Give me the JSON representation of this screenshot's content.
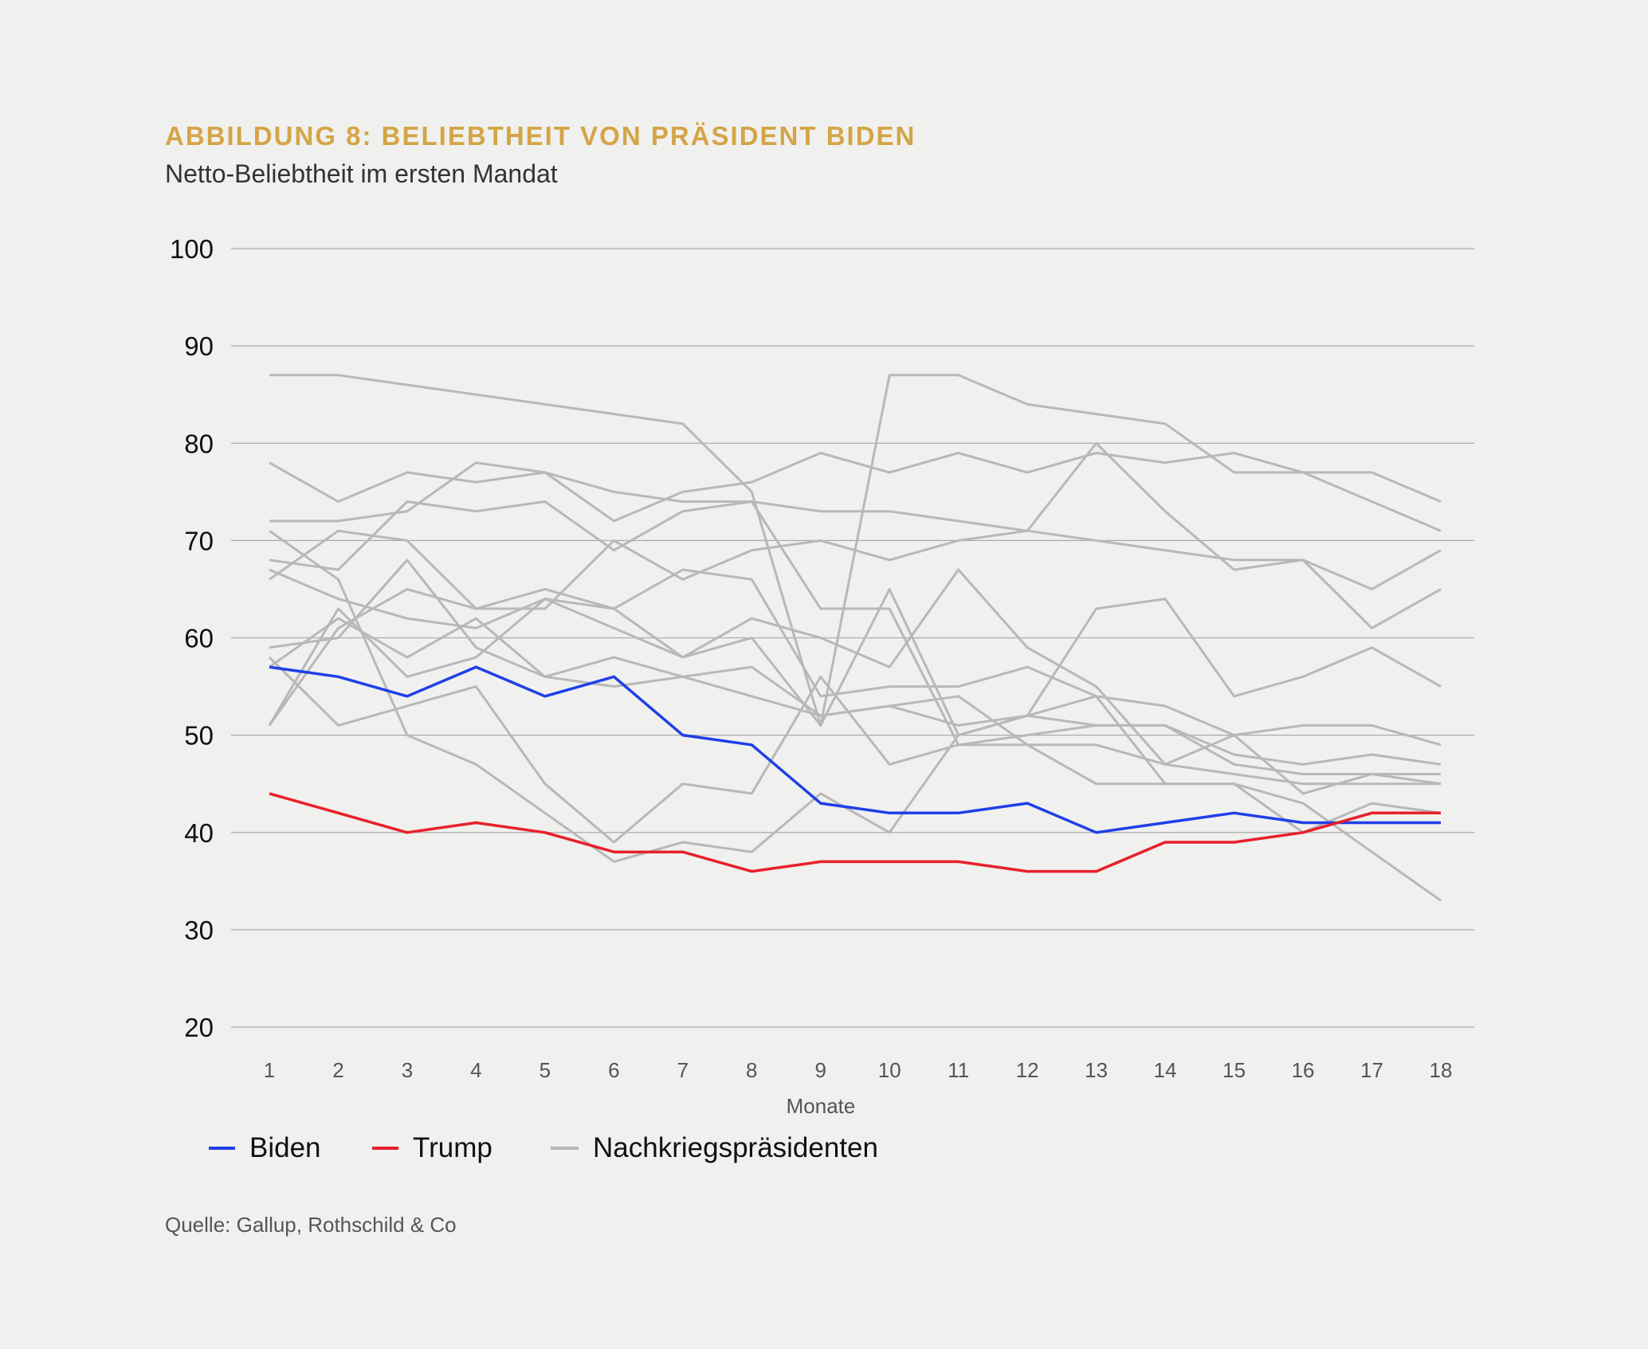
{
  "header": {
    "title": "ABBILDUNG 8: BELIEBTHEIT VON PRÄSIDENT BIDEN",
    "subtitle": "Netto-Beliebtheit im ersten Mandat"
  },
  "footer": {
    "source": "Quelle: Gallup, Rothschild & Co"
  },
  "colors": {
    "biden": "#1f3fe8",
    "trump": "#e8202a",
    "others": "#b8b8b8",
    "grid": "#aaaaaa",
    "accent": "#d4a546"
  },
  "chart_data": {
    "type": "line",
    "title": "ABBILDUNG 8: BELIEBTHEIT VON PRÄSIDENT BIDEN",
    "subtitle": "Netto-Beliebtheit im ersten Mandat",
    "xlabel": "Monate",
    "ylabel": "",
    "x": [
      1,
      2,
      3,
      4,
      5,
      6,
      7,
      8,
      9,
      10,
      11,
      12,
      13,
      14,
      15,
      16,
      17,
      18
    ],
    "ylim": [
      20,
      100
    ],
    "yticks": [
      20,
      30,
      40,
      50,
      60,
      70,
      80,
      90,
      100
    ],
    "grid": true,
    "legend_position": "bottom-left",
    "legend": [
      "Biden",
      "Trump",
      "Nachkriegspräsidenten"
    ],
    "series": [
      {
        "name": "Biden",
        "color": "#1f3fe8",
        "values": [
          57,
          56,
          54,
          57,
          54,
          56,
          50,
          49,
          43,
          42,
          42,
          43,
          40,
          41,
          42,
          41,
          41,
          41
        ]
      },
      {
        "name": "Trump",
        "color": "#e8202a",
        "values": [
          44,
          42,
          40,
          41,
          40,
          38,
          38,
          36,
          37,
          37,
          37,
          36,
          36,
          39,
          39,
          40,
          42,
          42
        ]
      },
      {
        "group": "Nachkriegspräsidenten",
        "values": [
          87,
          87,
          86,
          85,
          84,
          83,
          82,
          75,
          51,
          87,
          87,
          84,
          83,
          82,
          77,
          77,
          77,
          74
        ]
      },
      {
        "group": "Nachkriegspräsidenten",
        "values": [
          78,
          74,
          77,
          76,
          77,
          75,
          74,
          74,
          73,
          73,
          72,
          71,
          70,
          69,
          68,
          68,
          65,
          69
        ]
      },
      {
        "group": "Nachkriegspräsidenten",
        "values": [
          72,
          72,
          73,
          78,
          77,
          72,
          75,
          76,
          79,
          77,
          79,
          77,
          79,
          78,
          79,
          77,
          74,
          71
        ]
      },
      {
        "group": "Nachkriegspräsidenten",
        "values": [
          66,
          71,
          70,
          63,
          63,
          70,
          66,
          69,
          70,
          68,
          70,
          71,
          80,
          73,
          67,
          68,
          61,
          65
        ]
      },
      {
        "group": "Nachkriegspräsidenten",
        "values": [
          71,
          66,
          50,
          47,
          42,
          37,
          39,
          38,
          44,
          40,
          50,
          52,
          63,
          64,
          54,
          56,
          59,
          55
        ]
      },
      {
        "group": "Nachkriegspräsidenten",
        "values": [
          68,
          67,
          74,
          73,
          74,
          69,
          73,
          74,
          63,
          63,
          49,
          50,
          51,
          51,
          48,
          47,
          48,
          47
        ]
      },
      {
        "group": "Nachkriegspräsidenten",
        "values": [
          67,
          64,
          62,
          61,
          64,
          63,
          58,
          62,
          60,
          57,
          67,
          59,
          55,
          47,
          50,
          51,
          51,
          49
        ]
      },
      {
        "group": "Nachkriegspräsidenten",
        "values": [
          59,
          60,
          68,
          59,
          56,
          55,
          56,
          57,
          52,
          53,
          51,
          52,
          54,
          53,
          50,
          44,
          46,
          46
        ]
      },
      {
        "group": "Nachkriegspräsidenten",
        "values": [
          57,
          62,
          58,
          62,
          56,
          58,
          56,
          54,
          52,
          53,
          54,
          49,
          49,
          47,
          46,
          45,
          45,
          45
        ]
      },
      {
        "group": "Nachkriegspräsidenten",
        "values": [
          51,
          61,
          65,
          63,
          65,
          63,
          67,
          66,
          54,
          55,
          55,
          57,
          54,
          45,
          45,
          43,
          38,
          33
        ]
      },
      {
        "group": "Nachkriegspräsidenten",
        "values": [
          58,
          51,
          53,
          55,
          45,
          39,
          45,
          44,
          56,
          47,
          49,
          49,
          45,
          45,
          45,
          40,
          43,
          42
        ]
      },
      {
        "group": "Nachkriegspräsidenten",
        "values": [
          51,
          63,
          56,
          58,
          64,
          61,
          58,
          60,
          51,
          65,
          50,
          52,
          51,
          51,
          47,
          46,
          46,
          45
        ]
      }
    ]
  }
}
